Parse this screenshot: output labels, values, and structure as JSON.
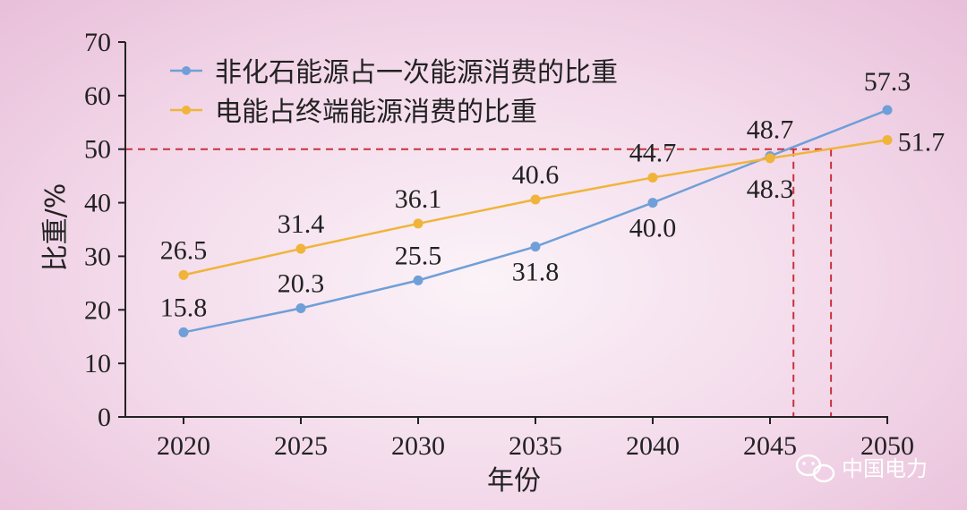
{
  "chart_data": {
    "type": "line",
    "x": [
      "2020",
      "2025",
      "2030",
      "2035",
      "2040",
      "2045",
      "2050"
    ],
    "series": [
      {
        "name": "非化石能源占一次能源消费的比重",
        "color": "#6f9fd8",
        "values": [
          15.8,
          20.3,
          25.5,
          31.8,
          40.0,
          48.7,
          57.3
        ],
        "labels": [
          "15.8",
          "20.3",
          "25.5",
          "31.8",
          "40.0",
          "48.7",
          "57.3"
        ]
      },
      {
        "name": "电能占终端能源消费的比重",
        "color": "#f0b43a",
        "values": [
          26.5,
          31.4,
          36.1,
          40.6,
          44.7,
          48.3,
          51.7
        ],
        "labels": [
          "26.5",
          "31.4",
          "36.1",
          "40.6",
          "44.7",
          "48.3",
          "51.7"
        ]
      }
    ],
    "xlabel": "年份",
    "ylabel": "比重/%",
    "ylim": [
      0,
      70
    ],
    "yticks": [
      "0",
      "10",
      "20",
      "30",
      "40",
      "50",
      "60",
      "70"
    ],
    "reference": {
      "y": 50,
      "x_crossings": [
        2046.0,
        2047.6
      ],
      "color": "#c8323c"
    },
    "legend_position": "top-left",
    "grid": false
  },
  "watermark": {
    "text": "中国电力",
    "icon": "wechat-icon"
  }
}
